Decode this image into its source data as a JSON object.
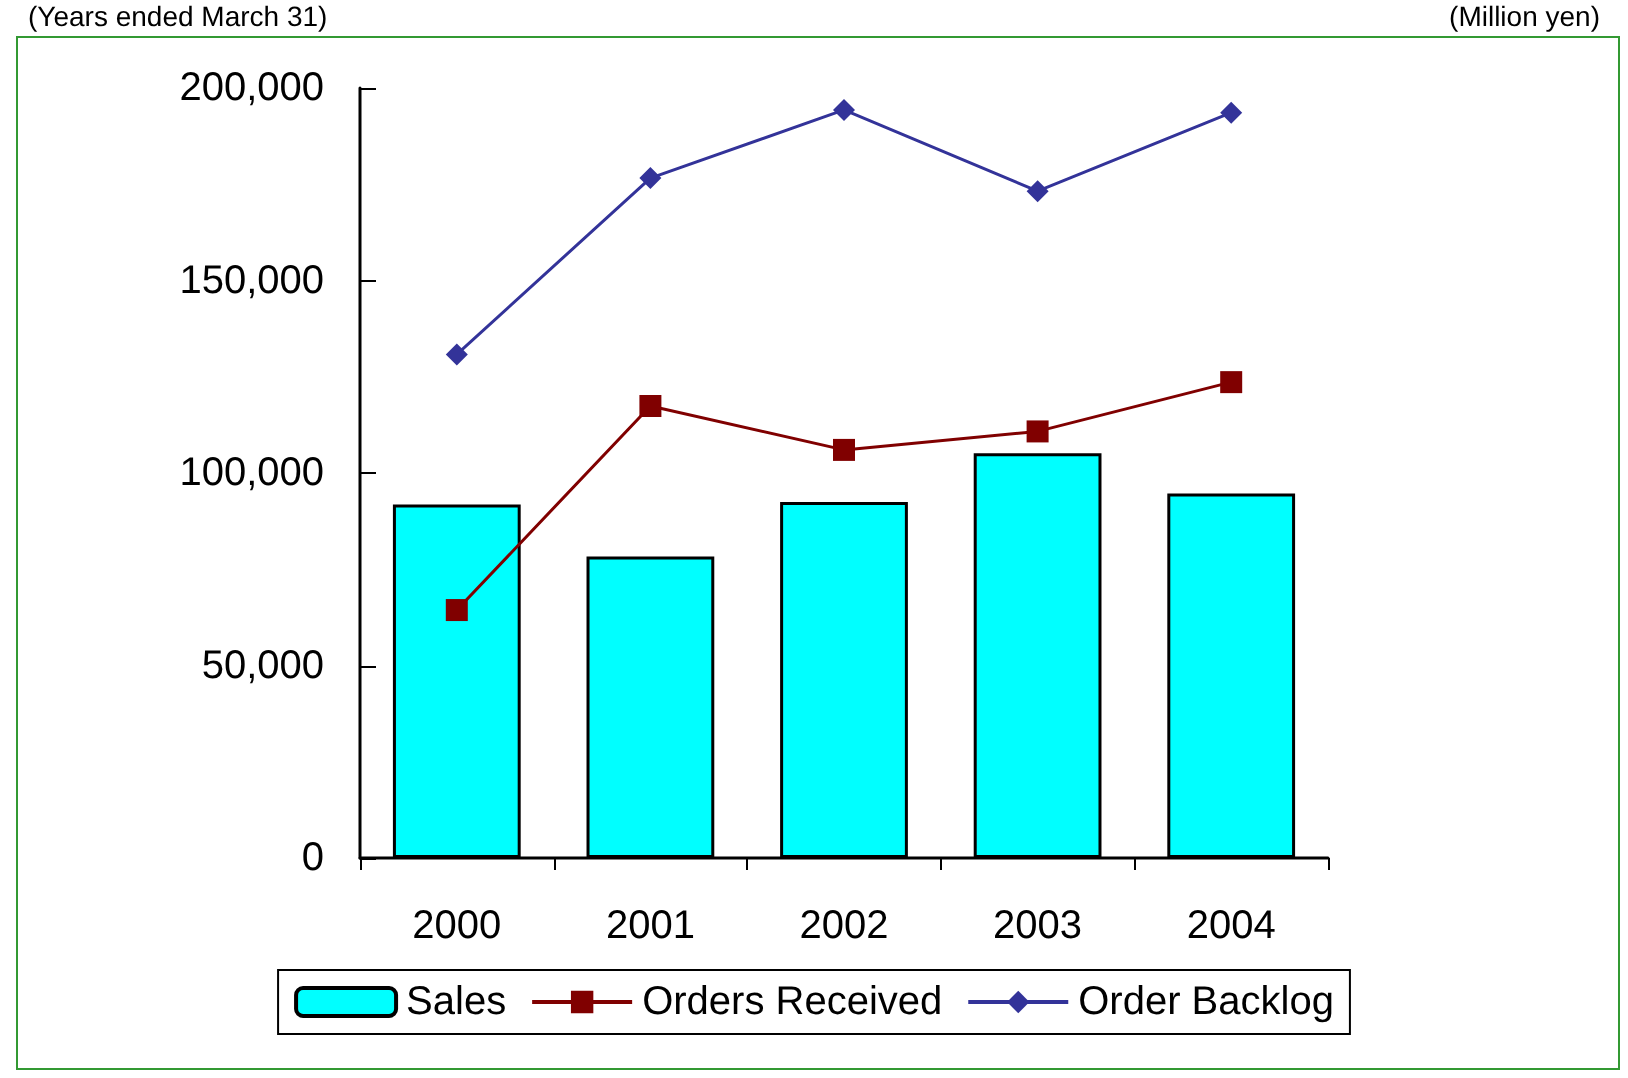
{
  "chart_data": {
    "type": "bar",
    "categories": [
      "2000",
      "2001",
      "2002",
      "2003",
      "2004"
    ],
    "series": [
      {
        "name": "Sales",
        "color": "#00ffff",
        "values": [
          91800,
          78300,
          92500,
          105100,
          94700
        ]
      },
      {
        "name": "Orders Received",
        "type": "line",
        "color": "#800000",
        "marker": "square",
        "values": [
          64400,
          117400,
          106000,
          110800,
          123600
        ]
      },
      {
        "name": "Order Backlog",
        "type": "line",
        "color": "#333399",
        "marker": "diamond",
        "values": [
          130800,
          176600,
          194300,
          173200,
          193600
        ]
      }
    ],
    "ylim": [
      0,
      200000
    ],
    "yticks": [
      0,
      {
        "value": 50000,
        "label": "50,000"
      },
      {
        "value": 100000,
        "label": "100,000"
      },
      {
        "value": 150000,
        "label": "150,000"
      },
      {
        "value": 200000,
        "label": "200,000"
      }
    ],
    "grid": false,
    "legend": "bottom",
    "annotations": [
      "(Years ended March 31)",
      "(Million yen)"
    ]
  }
}
